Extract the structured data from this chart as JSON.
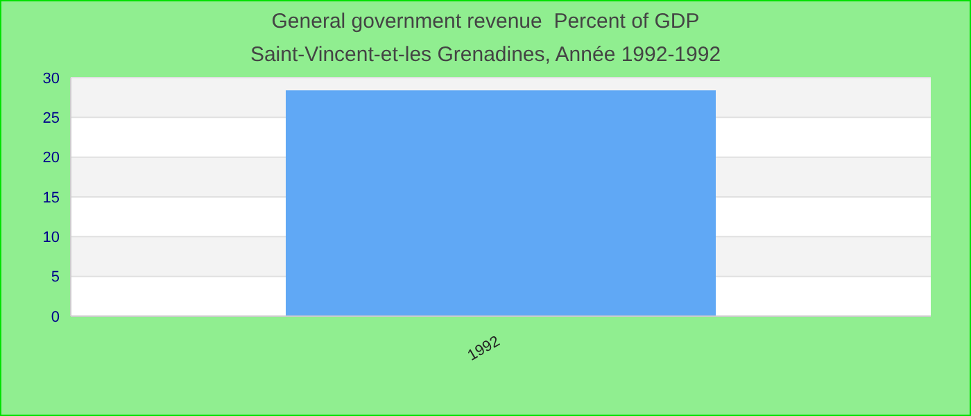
{
  "chart_data": {
    "type": "bar",
    "title": "General government revenue  Percent of GDP",
    "subtitle": "Saint-Vincent-et-les Grenadines, Année 1992-1992",
    "categories": [
      "1992"
    ],
    "values": [
      28.4
    ],
    "color": "#60a8f5",
    "ylim": [
      0,
      30
    ],
    "yticks": [
      0,
      5,
      10,
      15,
      20,
      25,
      30
    ],
    "grid": "y"
  }
}
